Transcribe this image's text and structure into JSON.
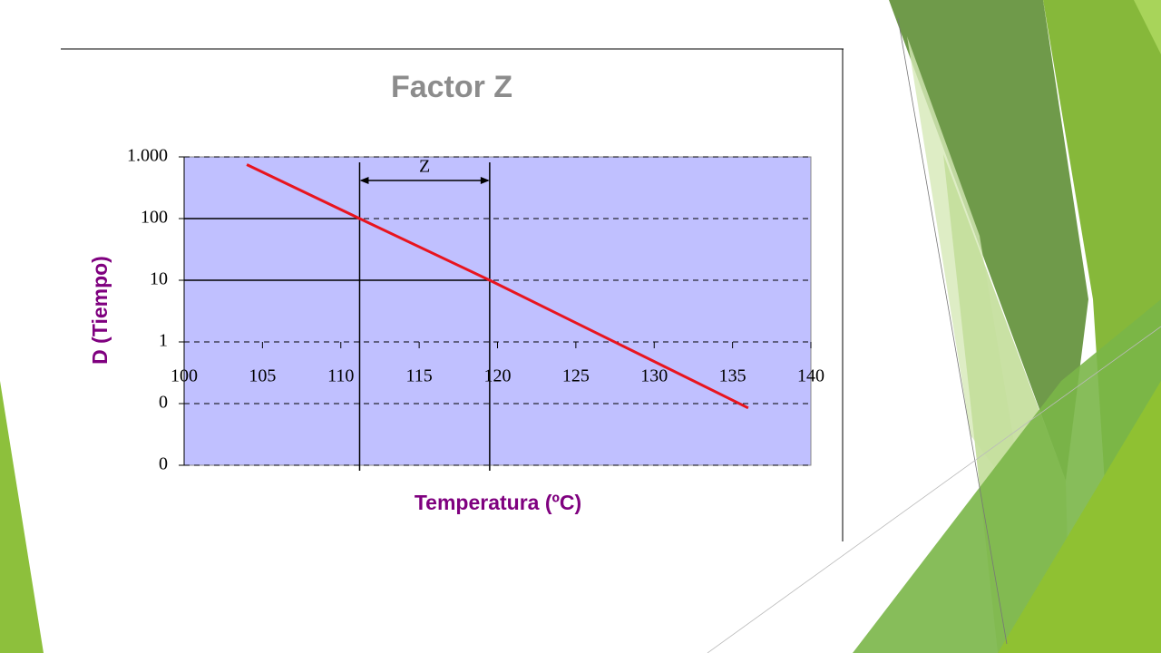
{
  "chart_data": {
    "type": "line",
    "title": "Factor Z",
    "x_label": "Temperatura (ºC)",
    "y_label": "D (Tiempo)",
    "x": [
      104,
      111.2,
      119.5,
      136
    ],
    "values": [
      750,
      100,
      10,
      0.085
    ],
    "color": "#e8141e",
    "xlim": [
      100,
      140
    ],
    "xticks": [
      100,
      105,
      110,
      115,
      120,
      125,
      130,
      135,
      140
    ],
    "ylim": [
      0.01,
      1000
    ],
    "log_y": true,
    "yticks": [
      {
        "value": 1000,
        "label": "1.000"
      },
      100,
      10,
      1,
      {
        "value": 0.1,
        "label": "0"
      },
      {
        "value": 0.01,
        "label": "0"
      }
    ],
    "grid": true,
    "annotation": "Z"
  }
}
